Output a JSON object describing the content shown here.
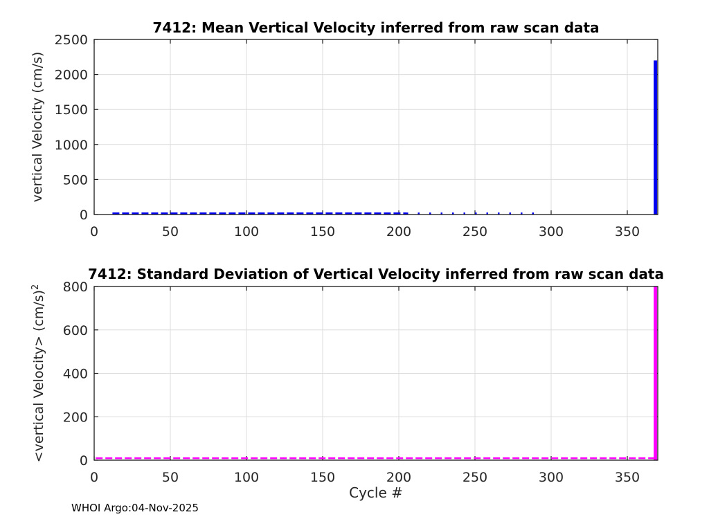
{
  "figure": {
    "watermark": "WHOI Argo:04-Nov-2025",
    "background": "#ffffff"
  },
  "style": {
    "axis_color": "#1a1a1a",
    "grid_color": "#dcdcdc",
    "tick_text_color": "#262626",
    "title_color": "#000000"
  },
  "chart_data": [
    {
      "type": "line",
      "title": "7412: Mean Vertical Velocity inferred from raw scan data",
      "ylabel": "vertical Velocity (cm/s)",
      "ylabel_superscript": "",
      "xlabel": "",
      "xlim": [
        0,
        370
      ],
      "ylim": [
        0,
        2500
      ],
      "xticks": [
        0,
        50,
        100,
        150,
        200,
        250,
        300,
        350
      ],
      "yticks": [
        0,
        500,
        1000,
        1500,
        2000,
        2500
      ],
      "grid": true,
      "series": [
        {
          "name": "mean-vertical-velocity",
          "color": "#0000f0",
          "line_style": "dash-dot",
          "segments": [
            {
              "x_from": 12,
              "x_to": 205,
              "y": 8,
              "density": "dense"
            },
            {
              "x_from": 205,
              "x_to": 289,
              "y": 6,
              "density": "sparse"
            }
          ],
          "spike": {
            "x": 368,
            "y": 2200,
            "clipped": false
          }
        }
      ]
    },
    {
      "type": "line",
      "title": "7412: Standard Deviation of Vertical Velocity inferred from raw scan data",
      "ylabel": "<vertical Velocity> (cm/s)",
      "ylabel_superscript": "2",
      "xlabel": "Cycle #",
      "xlim": [
        0,
        370
      ],
      "ylim": [
        0,
        800
      ],
      "xticks": [
        0,
        50,
        100,
        150,
        200,
        250,
        300,
        350
      ],
      "yticks": [
        0,
        200,
        400,
        600,
        800
      ],
      "grid": true,
      "series": [
        {
          "name": "std-vertical-velocity",
          "color": "#ff00ff",
          "line_style": "dash-dot",
          "segments": [
            {
              "x_from": 1,
              "x_to": 368,
              "y": 6,
              "density": "dense"
            }
          ],
          "spike": {
            "x": 368,
            "y": 800,
            "clipped": true
          }
        }
      ]
    }
  ]
}
